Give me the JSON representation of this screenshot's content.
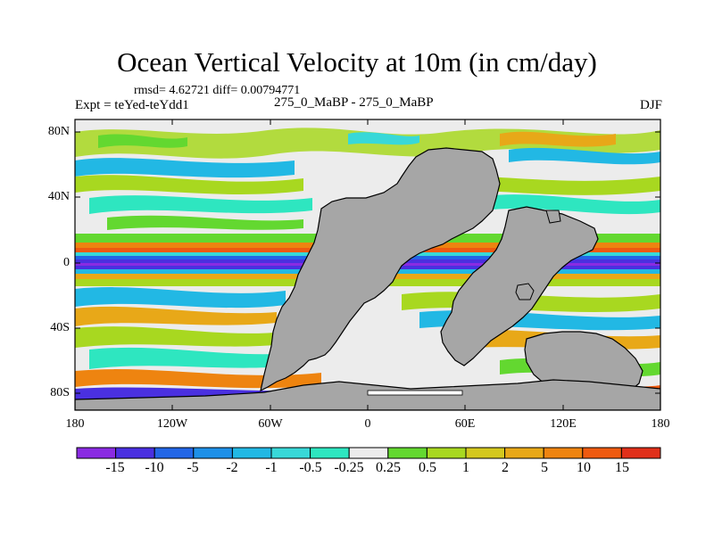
{
  "title": "Ocean Vertical Velocity at 10m (in cm/day)",
  "stats_text": "rmsd= 4.62721  diff= 0.00794771",
  "left_subtitle": "Expt = teYed-teYdd1",
  "center_subtitle": "275_0_MaBP - 275_0_MaBP",
  "right_subtitle": "DJF",
  "map": {
    "lat_ticks": [
      "80N",
      "40N",
      "0",
      "40S",
      "80S"
    ],
    "lon_ticks": [
      "180",
      "120W",
      "60W",
      "0",
      "60E",
      "120E",
      "180"
    ],
    "land_color": "#a6a6a6"
  },
  "colorbar": {
    "colors": [
      "#8a2be2",
      "#4a30e0",
      "#2366e6",
      "#1e90e8",
      "#22b8e4",
      "#38d8d8",
      "#2ee6c0",
      "#ececec",
      "#63d830",
      "#a8d820",
      "#d4c81e",
      "#e8a818",
      "#ee8410",
      "#ee5a10",
      "#e0301a"
    ],
    "labels": [
      "-15",
      "-10",
      "-5",
      "-2",
      "-1",
      "-0.5",
      "-0.25",
      "0.25",
      "0.5",
      "1",
      "2",
      "5",
      "10",
      "15"
    ]
  }
}
